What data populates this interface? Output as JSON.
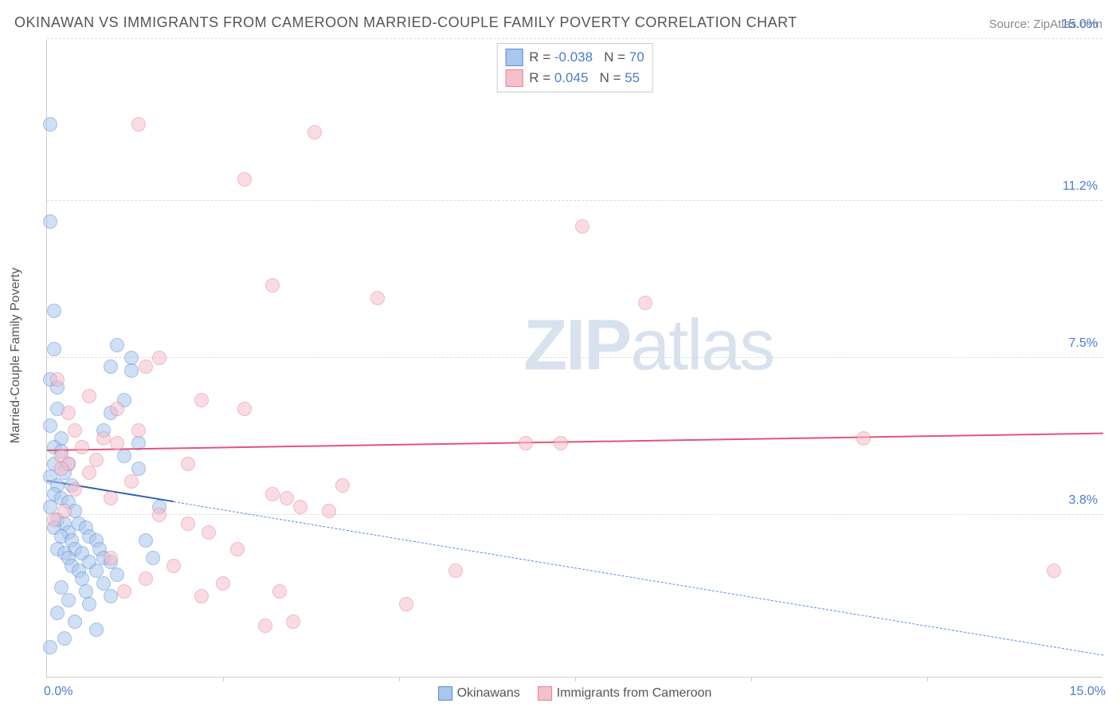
{
  "title": "OKINAWAN VS IMMIGRANTS FROM CAMEROON MARRIED-COUPLE FAMILY POVERTY CORRELATION CHART",
  "source": "Source: ZipAtlas.com",
  "watermark_bold": "ZIP",
  "watermark_light": "atlas",
  "y_axis_title": "Married-Couple Family Poverty",
  "chart": {
    "type": "scatter",
    "xlim": [
      0,
      15
    ],
    "ylim": [
      0,
      15
    ],
    "background_color": "#ffffff",
    "grid_color": "#dddddd",
    "y_ticks": [
      {
        "value": 3.8,
        "label": "3.8%",
        "color": "#4a7bd0"
      },
      {
        "value": 7.5,
        "label": "7.5%",
        "color": "#4a7bd0"
      },
      {
        "value": 11.2,
        "label": "11.2%",
        "color": "#4a7bd0"
      },
      {
        "value": 15.0,
        "label": "15.0%",
        "color": "#4a7bd0"
      }
    ],
    "x_origin_label": "0.0%",
    "x_max_label": "15.0%",
    "x_label_color": "#4a7bd0",
    "x_tick_positions": [
      2.5,
      5.0,
      7.5,
      10.0,
      12.5
    ],
    "point_radius": 9,
    "point_opacity": 0.55,
    "series": [
      {
        "name": "Okinawans",
        "fill_color": "#a9c6ec",
        "stroke_color": "#5a8cd6",
        "trend_solid_color": "#2e5fb5",
        "trend_dash_color": "#5a8cd6",
        "r_label": "R =",
        "r_value": "-0.038",
        "n_label": "N =",
        "n_value": "70",
        "trend": {
          "x1": 0,
          "y1": 4.6,
          "x2": 15,
          "y2": 0.5,
          "solid_until_x": 1.8
        },
        "points": [
          [
            0.05,
            13.0
          ],
          [
            0.05,
            10.7
          ],
          [
            0.1,
            8.6
          ],
          [
            0.1,
            7.7
          ],
          [
            0.05,
            7.0
          ],
          [
            0.15,
            6.8
          ],
          [
            0.15,
            6.3
          ],
          [
            0.05,
            5.9
          ],
          [
            0.2,
            5.6
          ],
          [
            0.1,
            5.4
          ],
          [
            0.2,
            5.3
          ],
          [
            0.1,
            5.0
          ],
          [
            0.3,
            5.0
          ],
          [
            0.25,
            4.8
          ],
          [
            0.05,
            4.7
          ],
          [
            0.15,
            4.5
          ],
          [
            0.35,
            4.5
          ],
          [
            0.1,
            4.3
          ],
          [
            0.2,
            4.2
          ],
          [
            0.3,
            4.1
          ],
          [
            0.05,
            4.0
          ],
          [
            0.4,
            3.9
          ],
          [
            0.15,
            3.7
          ],
          [
            0.25,
            3.6
          ],
          [
            0.45,
            3.6
          ],
          [
            0.1,
            3.5
          ],
          [
            0.55,
            3.5
          ],
          [
            0.3,
            3.4
          ],
          [
            0.2,
            3.3
          ],
          [
            0.6,
            3.3
          ],
          [
            0.35,
            3.2
          ],
          [
            0.7,
            3.2
          ],
          [
            0.15,
            3.0
          ],
          [
            0.4,
            3.0
          ],
          [
            0.75,
            3.0
          ],
          [
            0.25,
            2.9
          ],
          [
            0.5,
            2.9
          ],
          [
            0.8,
            2.8
          ],
          [
            0.3,
            2.8
          ],
          [
            0.6,
            2.7
          ],
          [
            0.9,
            2.7
          ],
          [
            0.35,
            2.6
          ],
          [
            0.45,
            2.5
          ],
          [
            0.7,
            2.5
          ],
          [
            1.0,
            2.4
          ],
          [
            0.5,
            2.3
          ],
          [
            0.8,
            2.2
          ],
          [
            0.2,
            2.1
          ],
          [
            0.55,
            2.0
          ],
          [
            0.9,
            1.9
          ],
          [
            0.3,
            1.8
          ],
          [
            0.6,
            1.7
          ],
          [
            0.15,
            1.5
          ],
          [
            0.4,
            1.3
          ],
          [
            0.7,
            1.1
          ],
          [
            0.25,
            0.9
          ],
          [
            0.05,
            0.7
          ],
          [
            1.2,
            7.5
          ],
          [
            1.1,
            5.2
          ],
          [
            1.3,
            4.9
          ],
          [
            1.4,
            3.2
          ],
          [
            1.5,
            2.8
          ],
          [
            1.2,
            7.2
          ],
          [
            1.1,
            6.5
          ],
          [
            1.3,
            5.5
          ],
          [
            0.9,
            7.3
          ],
          [
            0.9,
            6.2
          ],
          [
            0.8,
            5.8
          ],
          [
            1.0,
            7.8
          ],
          [
            1.6,
            4.0
          ]
        ]
      },
      {
        "name": "Immigrants from Cameroon",
        "fill_color": "#f5c0ca",
        "stroke_color": "#e77f96",
        "trend_solid_color": "#e25578",
        "trend_dash_color": "#e77f96",
        "r_label": "R =",
        "r_value": "0.045",
        "n_label": "N =",
        "n_value": "55",
        "trend": {
          "x1": 0,
          "y1": 5.3,
          "x2": 15,
          "y2": 5.7,
          "solid_until_x": 15
        },
        "points": [
          [
            1.3,
            13.0
          ],
          [
            3.8,
            12.8
          ],
          [
            2.8,
            11.7
          ],
          [
            7.6,
            10.6
          ],
          [
            3.2,
            9.2
          ],
          [
            4.7,
            8.9
          ],
          [
            8.5,
            8.8
          ],
          [
            1.6,
            7.5
          ],
          [
            1.4,
            7.3
          ],
          [
            2.2,
            6.5
          ],
          [
            2.8,
            6.3
          ],
          [
            0.6,
            6.6
          ],
          [
            0.3,
            6.2
          ],
          [
            0.4,
            5.8
          ],
          [
            0.8,
            5.6
          ],
          [
            1.0,
            5.5
          ],
          [
            0.5,
            5.4
          ],
          [
            0.2,
            5.2
          ],
          [
            0.7,
            5.1
          ],
          [
            0.3,
            5.0
          ],
          [
            0.6,
            4.8
          ],
          [
            1.2,
            4.6
          ],
          [
            0.4,
            4.4
          ],
          [
            0.9,
            4.2
          ],
          [
            1.6,
            3.8
          ],
          [
            2.0,
            3.6
          ],
          [
            2.3,
            3.4
          ],
          [
            3.2,
            4.3
          ],
          [
            3.4,
            4.2
          ],
          [
            3.6,
            4.0
          ],
          [
            4.0,
            3.9
          ],
          [
            3.3,
            2.0
          ],
          [
            3.5,
            1.3
          ],
          [
            3.1,
            1.2
          ],
          [
            2.2,
            1.9
          ],
          [
            2.5,
            2.2
          ],
          [
            2.7,
            3.0
          ],
          [
            1.8,
            2.6
          ],
          [
            1.4,
            2.3
          ],
          [
            0.9,
            2.8
          ],
          [
            4.2,
            4.5
          ],
          [
            5.8,
            2.5
          ],
          [
            5.1,
            1.7
          ],
          [
            6.8,
            5.5
          ],
          [
            7.3,
            5.5
          ],
          [
            11.6,
            5.6
          ],
          [
            14.3,
            2.5
          ],
          [
            0.15,
            7.0
          ],
          [
            0.2,
            4.9
          ],
          [
            0.1,
            3.7
          ],
          [
            0.25,
            3.9
          ],
          [
            1.0,
            6.3
          ],
          [
            1.1,
            2.0
          ],
          [
            1.3,
            5.8
          ],
          [
            2.0,
            5.0
          ]
        ]
      }
    ],
    "legend_top": {
      "text_color": "#555555",
      "value_color": "#4a7bd0"
    },
    "legend_bottom": {
      "text_color": "#555555"
    }
  }
}
